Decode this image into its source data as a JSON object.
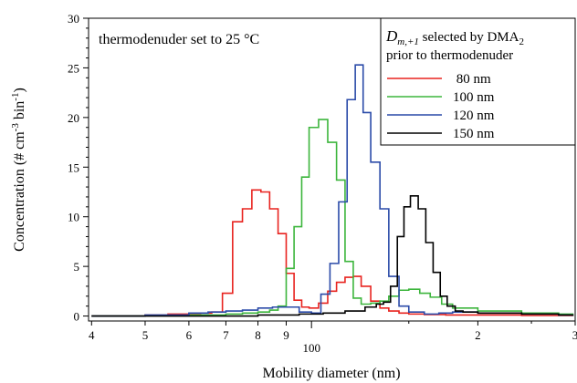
{
  "chart_data": {
    "type": "line",
    "xlabel": "Mobility diameter (nm)",
    "ylabel": "Concentration (# cm",
    "ylabel_sup1": "-3",
    "ylabel_mid": " bin",
    "ylabel_sup2": "-1",
    "ylabel_end": ")",
    "annotation": "thermodenuder set to 25 °C",
    "x_scale": "log",
    "xlim": [
      39.5,
      300
    ],
    "ylim": [
      -0.5,
      30
    ],
    "grid": false,
    "legend_placement": "top-right",
    "legend": {
      "title_main": "D",
      "title_sub": "m,+1",
      "title_rest": " selected by DMA",
      "title_sub2": "2",
      "title_line2": "prior to thermodenuder"
    },
    "x_ticks": [
      {
        "value": 40,
        "label": "4"
      },
      {
        "value": 50,
        "label": "5"
      },
      {
        "value": 60,
        "label": "6"
      },
      {
        "value": 70,
        "label": "7"
      },
      {
        "value": 80,
        "label": "8"
      },
      {
        "value": 90,
        "label": "9"
      },
      {
        "value": 100,
        "label": "100",
        "major": true
      },
      {
        "value": 200,
        "label": "2"
      },
      {
        "value": 300,
        "label": "3"
      }
    ],
    "y_ticks": [
      {
        "value": 0,
        "label": "0"
      },
      {
        "value": 5,
        "label": "5"
      },
      {
        "value": 10,
        "label": "10"
      },
      {
        "value": 15,
        "label": "15"
      },
      {
        "value": 20,
        "label": "20"
      },
      {
        "value": 25,
        "label": "25"
      },
      {
        "value": 30,
        "label": "30"
      }
    ],
    "series": [
      {
        "name": " 80 nm",
        "color": "#e8231f",
        "x": [
          40,
          45,
          50,
          55,
          60,
          63,
          66,
          69,
          72,
          75,
          78,
          81,
          84,
          87,
          90,
          93,
          96,
          99,
          103,
          107,
          111,
          115,
          119,
          123,
          128,
          133,
          138,
          144,
          150,
          160,
          175,
          200,
          240,
          280,
          297
        ],
        "y": [
          0,
          0,
          0.1,
          0.2,
          0.25,
          0.3,
          0.4,
          2.3,
          9.5,
          10.8,
          12.7,
          12.5,
          10.8,
          8.3,
          4.3,
          1.6,
          0.9,
          0.8,
          1.3,
          2.5,
          3.4,
          3.9,
          4.0,
          3.0,
          1.5,
          0.8,
          0.5,
          0.3,
          0.2,
          0.15,
          0.1,
          0.1,
          0.05,
          0.05,
          0
        ]
      },
      {
        "name": "100 nm",
        "color": "#3cb53c",
        "x": [
          40,
          50,
          60,
          70,
          75,
          80,
          84,
          87,
          90,
          93,
          96,
          99,
          103,
          107,
          111,
          115,
          119,
          123,
          128,
          133,
          138,
          144,
          150,
          157,
          164,
          172,
          180,
          200,
          240,
          280,
          297
        ],
        "y": [
          0,
          0.05,
          0.1,
          0.2,
          0.3,
          0.4,
          0.6,
          1.0,
          4.8,
          9.0,
          14.0,
          19.0,
          19.8,
          17.5,
          13.7,
          5.5,
          1.8,
          1.2,
          1.3,
          1.5,
          2.0,
          2.6,
          2.7,
          2.3,
          1.9,
          1.2,
          0.8,
          0.5,
          0.3,
          0.2,
          0
        ]
      },
      {
        "name": "120 nm",
        "color": "#2a4aa8",
        "x": [
          40,
          50,
          60,
          65,
          70,
          75,
          80,
          85,
          90,
          95,
          100,
          104,
          108,
          112,
          116,
          120,
          124,
          128,
          133,
          138,
          144,
          150,
          160,
          170,
          180,
          200,
          240,
          280,
          297
        ],
        "y": [
          0,
          0.1,
          0.3,
          0.4,
          0.5,
          0.6,
          0.8,
          0.9,
          0.9,
          0.4,
          0.3,
          2.2,
          5.3,
          11.5,
          21.8,
          25.3,
          20.5,
          15.5,
          10.8,
          4.0,
          1.0,
          0.4,
          0.2,
          0.3,
          0.4,
          0.3,
          0.2,
          0.1,
          0
        ]
      },
      {
        "name": "150 nm",
        "color": "#000000",
        "x": [
          40,
          60,
          80,
          95,
          105,
          115,
          125,
          131,
          135,
          139,
          143,
          147,
          151,
          156,
          161,
          166,
          171,
          176,
          182,
          188,
          200,
          240,
          280,
          297
        ],
        "y": [
          0,
          0,
          0.1,
          0.2,
          0.3,
          0.5,
          0.9,
          1.2,
          1.4,
          3.0,
          8.0,
          11.0,
          12.1,
          10.8,
          7.4,
          4.4,
          2.0,
          1.0,
          0.5,
          0.4,
          0.3,
          0.2,
          0.1,
          0
        ]
      }
    ]
  }
}
